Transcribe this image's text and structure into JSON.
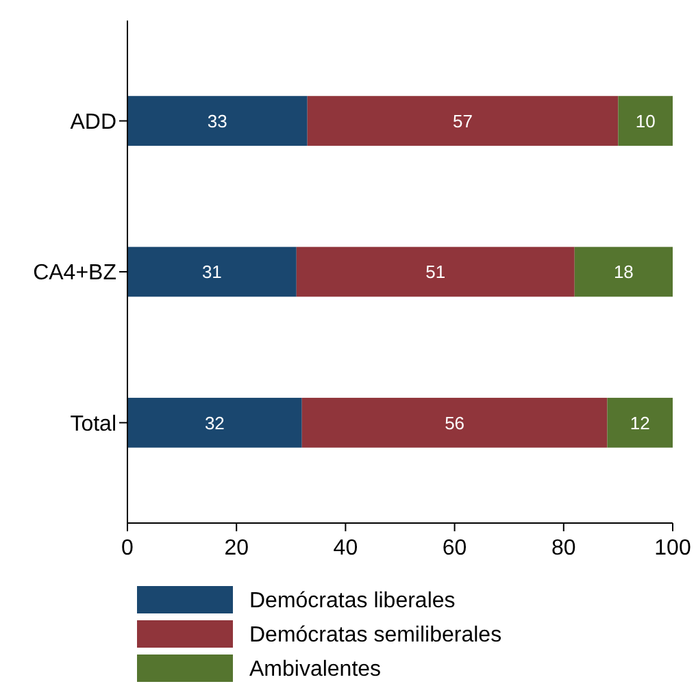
{
  "chart_data": {
    "type": "bar",
    "orientation": "horizontal",
    "stacked": true,
    "categories": [
      "ADD",
      "CA4+BZ",
      "Total"
    ],
    "series": [
      {
        "name": "Demócratas liberales",
        "color": "#1a476f",
        "values": [
          33,
          31,
          32
        ]
      },
      {
        "name": "Demócratas semiliberales",
        "color": "#90353b",
        "values": [
          57,
          51,
          56
        ]
      },
      {
        "name": "Ambivalentes",
        "color": "#55752f",
        "values": [
          10,
          18,
          12
        ]
      }
    ],
    "xlim": [
      0,
      100
    ],
    "xticks": [
      0,
      20,
      40,
      60,
      80,
      100
    ],
    "data_labels": true,
    "grid": false,
    "legend": "bottom"
  }
}
